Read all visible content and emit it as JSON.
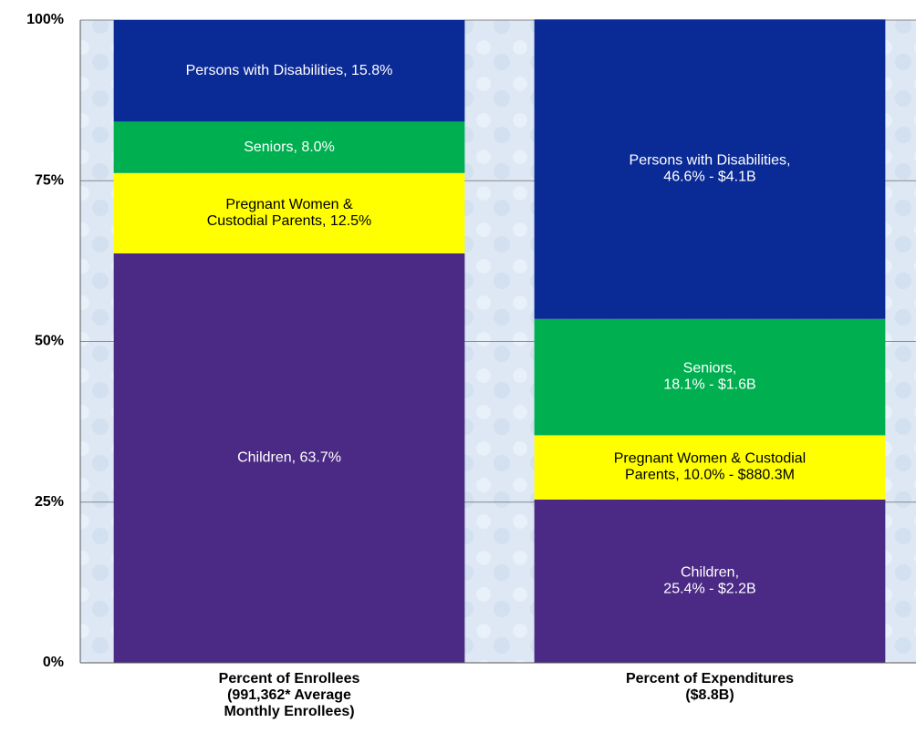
{
  "chart_data": {
    "type": "stacked_bar",
    "categories": [
      "Percent of Enrollees\n(991,362* Average\nMonthly Enrollees)",
      "Percent of Expenditures\n($8.8B)"
    ],
    "series": [
      {
        "color": "#4b2a85",
        "label_color": "#ffffff",
        "values": [
          63.7,
          25.4
        ],
        "value_labels": [
          "Children, 63.7%",
          "Children,\n25.4% - $2.2B"
        ]
      },
      {
        "color": "#ffff00",
        "label_color": "#000000",
        "values": [
          12.5,
          10.0
        ],
        "value_labels": [
          "Pregnant Women &\nCustodial Parents, 12.5%",
          "Pregnant Women & Custodial\nParents, 10.0% - $880.3M"
        ]
      },
      {
        "color": "#00b050",
        "label_color": "#ffffff",
        "values": [
          8.0,
          18.1
        ],
        "value_labels": [
          "Seniors, 8.0%",
          "Seniors,\n18.1% - $1.6B"
        ]
      },
      {
        "color": "#0a2a96",
        "label_color": "#ffffff",
        "values": [
          15.8,
          46.6
        ],
        "value_labels": [
          "Persons with Disabilities, 15.8%",
          "Persons with Disabilities,\n46.6% - $4.1B"
        ]
      }
    ],
    "ylim": [
      0,
      100
    ],
    "yticks": [
      {
        "value": 0,
        "label": "0%"
      },
      {
        "value": 25,
        "label": "25%"
      },
      {
        "value": 50,
        "label": "50%"
      },
      {
        "value": 75,
        "label": "75%"
      },
      {
        "value": 100,
        "label": "100%"
      }
    ],
    "grid": true
  }
}
